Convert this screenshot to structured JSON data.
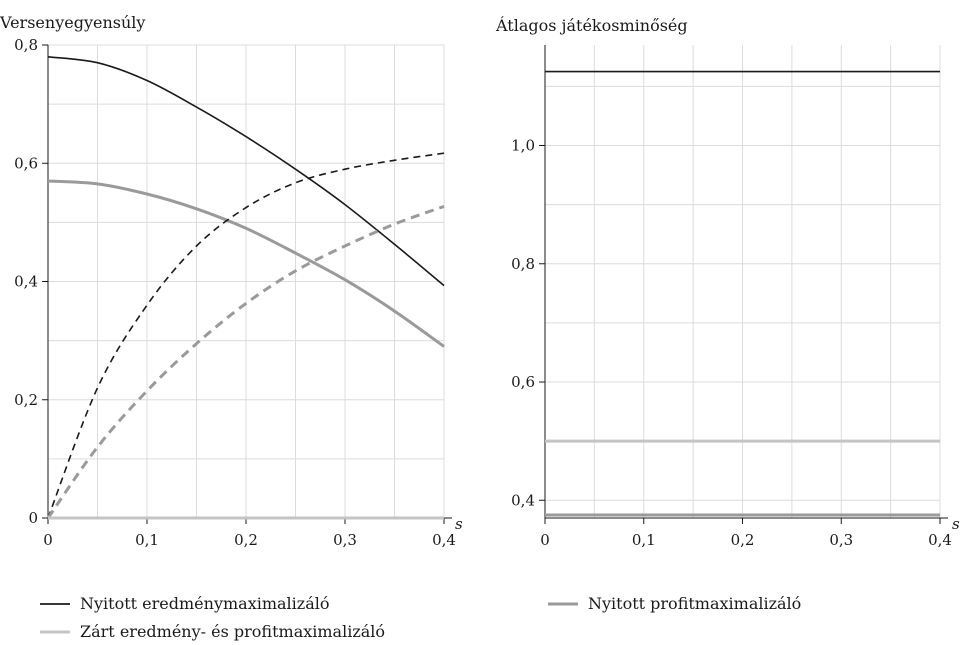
{
  "colors": {
    "open_result": "#1a1a1a",
    "open_profit": "#9a9a9a",
    "closed": "#c4c4c4",
    "grid": "#dcdcdc"
  },
  "legend": [
    {
      "label": "Nyitott eredménymaximalizáló",
      "series": "open_result"
    },
    {
      "label": "Nyitott profitmaximalizáló",
      "series": "open_profit"
    },
    {
      "label": "Zárt eredmény- és profitmaximalizáló",
      "series": "closed"
    }
  ],
  "chart_data": [
    {
      "type": "line",
      "title": "Versenyegyensúly",
      "xlabel": "s",
      "ylabel": "",
      "xlim": [
        0,
        0.4
      ],
      "ylim": [
        0,
        0.8
      ],
      "xticks": [
        0,
        0.1,
        0.2,
        0.3,
        0.4
      ],
      "xtick_labels": [
        "0",
        "0,1",
        "0,2",
        "0,3",
        "0,4"
      ],
      "yticks": [
        0,
        0.2,
        0.4,
        0.6,
        0.8
      ],
      "ytick_labels": [
        "0",
        "0,2",
        "0,4",
        "0,6",
        "0,8"
      ],
      "grid": true,
      "x": [
        0,
        0.05,
        0.1,
        0.15,
        0.2,
        0.25,
        0.3,
        0.35,
        0.4
      ],
      "series": [
        {
          "key": "open_result",
          "style": "solid",
          "values": [
            0.78,
            0.77,
            0.74,
            0.695,
            0.645,
            0.59,
            0.53,
            0.463,
            0.393
          ]
        },
        {
          "key": "open_profit",
          "style": "solid",
          "values": [
            0.57,
            0.565,
            0.548,
            0.523,
            0.49,
            0.448,
            0.403,
            0.35,
            0.29
          ]
        },
        {
          "key": "open_result",
          "style": "dashed",
          "values": [
            0,
            0.22,
            0.36,
            0.46,
            0.525,
            0.567,
            0.59,
            0.605,
            0.617
          ]
        },
        {
          "key": "open_profit",
          "style": "dashed",
          "values": [
            0,
            0.12,
            0.215,
            0.295,
            0.363,
            0.418,
            0.46,
            0.497,
            0.527
          ]
        },
        {
          "key": "closed",
          "style": "solid",
          "values": [
            0,
            0,
            0,
            0,
            0,
            0,
            0,
            0,
            0
          ]
        }
      ]
    },
    {
      "type": "line",
      "title": "Átlagos játékosminőség",
      "xlabel": "s",
      "ylabel": "",
      "xlim": [
        0,
        0.4
      ],
      "ylim": [
        0.37,
        1.17
      ],
      "xticks": [
        0,
        0.1,
        0.2,
        0.3,
        0.4
      ],
      "xtick_labels": [
        "0",
        "0,1",
        "0,2",
        "0,3",
        "0,4"
      ],
      "yticks": [
        0.4,
        0.6,
        0.8,
        1.0
      ],
      "ytick_labels": [
        "0,4",
        "0,6",
        "0,8",
        "1,0"
      ],
      "grid": true,
      "x": [
        0,
        0.4
      ],
      "series": [
        {
          "key": "open_result",
          "style": "solid",
          "values": [
            1.125,
            1.125
          ]
        },
        {
          "key": "closed",
          "style": "solid",
          "values": [
            0.5,
            0.5
          ]
        },
        {
          "key": "open_profit",
          "style": "solid",
          "values": [
            0.375,
            0.375
          ]
        }
      ]
    }
  ]
}
